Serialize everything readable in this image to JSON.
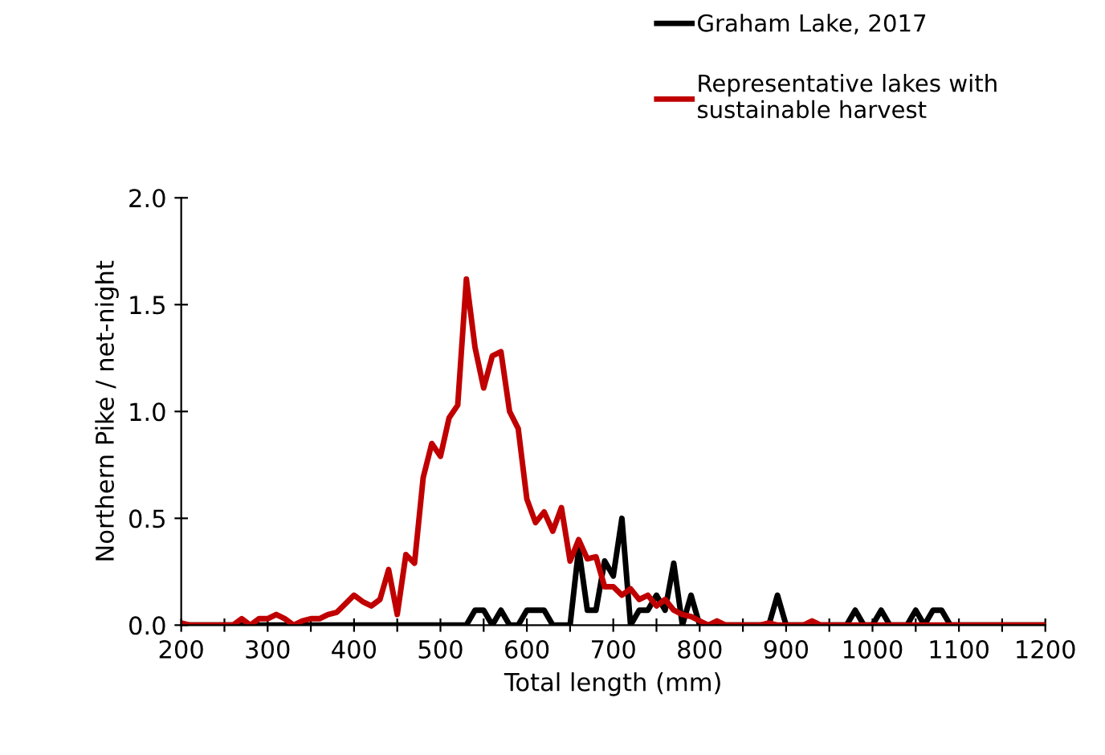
{
  "chart_data": {
    "type": "line",
    "xlabel": "Total length (mm)",
    "ylabel": "Northern Pike / net-night",
    "x": [
      200,
      210,
      220,
      230,
      240,
      250,
      260,
      270,
      280,
      290,
      300,
      310,
      320,
      330,
      340,
      350,
      360,
      370,
      380,
      390,
      400,
      410,
      420,
      430,
      440,
      450,
      460,
      470,
      480,
      490,
      500,
      510,
      520,
      530,
      540,
      550,
      560,
      570,
      580,
      590,
      600,
      610,
      620,
      630,
      640,
      650,
      660,
      670,
      680,
      690,
      700,
      710,
      720,
      730,
      740,
      750,
      760,
      770,
      780,
      790,
      800,
      810,
      820,
      830,
      840,
      850,
      860,
      870,
      880,
      890,
      900,
      910,
      920,
      930,
      940,
      950,
      960,
      970,
      980,
      990,
      1000,
      1010,
      1020,
      1030,
      1040,
      1050,
      1060,
      1070,
      1080,
      1090,
      1100,
      1110,
      1120,
      1130,
      1140,
      1150,
      1160,
      1170,
      1180,
      1190,
      1200
    ],
    "series": [
      {
        "name": "Graham Lake, 2017",
        "color": "#000000",
        "values": [
          0,
          0,
          0,
          0,
          0,
          0,
          0,
          0,
          0,
          0,
          0,
          0,
          0,
          0,
          0,
          0,
          0,
          0,
          0,
          0,
          0,
          0,
          0,
          0,
          0,
          0,
          0,
          0,
          0,
          0,
          0,
          0,
          0,
          0,
          0.07,
          0.07,
          0,
          0.07,
          0,
          0,
          0.07,
          0.07,
          0.07,
          0,
          0,
          0,
          0.36,
          0.07,
          0.07,
          0.3,
          0.23,
          0.5,
          0,
          0.07,
          0.07,
          0.14,
          0.07,
          0.29,
          0,
          0.14,
          0,
          0,
          0,
          0,
          0,
          0,
          0,
          0,
          0,
          0.14,
          0,
          0,
          0,
          0,
          0,
          0,
          0,
          0,
          0.07,
          0,
          0,
          0.07,
          0,
          0,
          0,
          0.07,
          0,
          0.07,
          0.07,
          0,
          0,
          0,
          0,
          0,
          0,
          0,
          0,
          0,
          0,
          0,
          0
        ]
      },
      {
        "name": "Representative lakes with\nsustainable harvest",
        "color": "#c00000",
        "values": [
          0.01,
          0,
          0,
          0,
          0,
          0,
          0,
          0.03,
          0,
          0.03,
          0.03,
          0.05,
          0.03,
          0,
          0.02,
          0.03,
          0.03,
          0.05,
          0.06,
          0.1,
          0.14,
          0.11,
          0.09,
          0.12,
          0.26,
          0.05,
          0.33,
          0.29,
          0.69,
          0.85,
          0.79,
          0.97,
          1.03,
          1.62,
          1.3,
          1.11,
          1.26,
          1.28,
          1.0,
          0.92,
          0.59,
          0.48,
          0.53,
          0.44,
          0.55,
          0.3,
          0.4,
          0.31,
          0.32,
          0.18,
          0.18,
          0.14,
          0.17,
          0.12,
          0.14,
          0.09,
          0.12,
          0.07,
          0.05,
          0.04,
          0.02,
          0,
          0.02,
          0,
          0,
          0,
          0,
          0,
          0.01,
          0,
          0,
          0,
          0,
          0.02,
          0,
          0,
          0,
          0,
          0,
          0,
          0,
          0,
          0,
          0,
          0,
          0,
          0,
          0,
          0,
          0,
          0,
          0,
          0,
          0,
          0,
          0,
          0,
          0,
          0,
          0,
          0
        ]
      }
    ],
    "xlim": [
      200,
      1200
    ],
    "xticks": [
      200,
      {
        "value": 250,
        "label": null
      },
      300,
      {
        "value": 350,
        "label": null
      },
      400,
      {
        "value": 450,
        "label": null
      },
      500,
      {
        "value": 550,
        "label": null
      },
      600,
      {
        "value": 650,
        "label": null
      },
      700,
      {
        "value": 750,
        "label": null
      },
      800,
      {
        "value": 850,
        "label": null
      },
      900,
      {
        "value": 950,
        "label": null
      },
      1000,
      {
        "value": 1050,
        "label": null
      },
      1100,
      {
        "value": 1150,
        "label": null
      },
      1200
    ],
    "ylim": [
      0,
      2
    ],
    "yticks": [
      {
        "value": 0,
        "label": "0.0"
      },
      {
        "value": 0.5,
        "label": "0.5"
      },
      {
        "value": 1,
        "label": "1.0"
      },
      {
        "value": 1.5,
        "label": "1.5"
      },
      {
        "value": 2,
        "label": "2.0"
      }
    ],
    "grid": false,
    "legend": "top right",
    "marker": "none",
    "line_style": "solid"
  }
}
